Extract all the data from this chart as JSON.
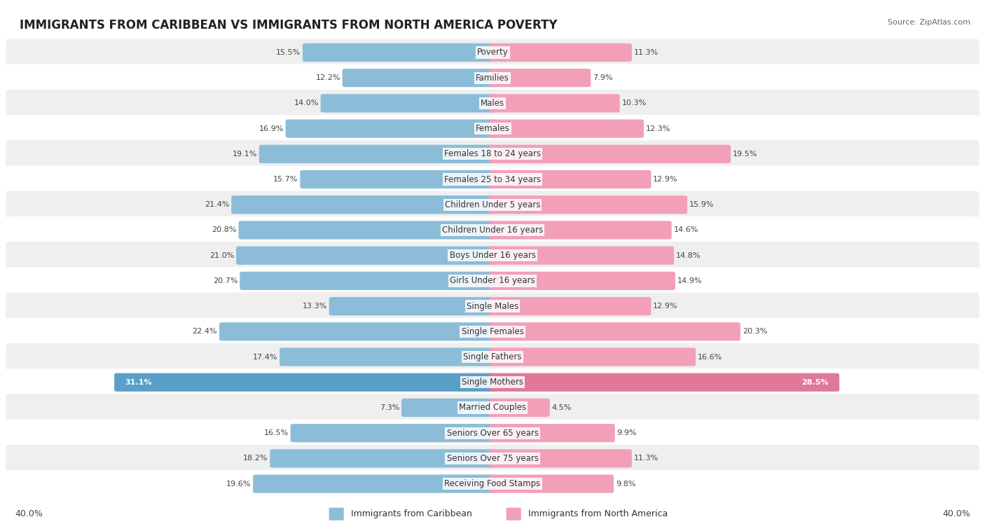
{
  "title": "IMMIGRANTS FROM CARIBBEAN VS IMMIGRANTS FROM NORTH AMERICA POVERTY",
  "source": "Source: ZipAtlas.com",
  "categories": [
    "Poverty",
    "Families",
    "Males",
    "Females",
    "Females 18 to 24 years",
    "Females 25 to 34 years",
    "Children Under 5 years",
    "Children Under 16 years",
    "Boys Under 16 years",
    "Girls Under 16 years",
    "Single Males",
    "Single Females",
    "Single Fathers",
    "Single Mothers",
    "Married Couples",
    "Seniors Over 65 years",
    "Seniors Over 75 years",
    "Receiving Food Stamps"
  ],
  "left_values": [
    15.5,
    12.2,
    14.0,
    16.9,
    19.1,
    15.7,
    21.4,
    20.8,
    21.0,
    20.7,
    13.3,
    22.4,
    17.4,
    31.1,
    7.3,
    16.5,
    18.2,
    19.6
  ],
  "right_values": [
    11.3,
    7.9,
    10.3,
    12.3,
    19.5,
    12.9,
    15.9,
    14.6,
    14.8,
    14.9,
    12.9,
    20.3,
    16.6,
    28.5,
    4.5,
    9.9,
    11.3,
    9.8
  ],
  "left_color": "#8cbdd8",
  "right_color": "#f2a0b8",
  "left_highlight_color": "#5a9fc8",
  "right_highlight_color": "#e07898",
  "highlight_rows": [
    13
  ],
  "background_color": "#ffffff",
  "row_bg_even": "#efefef",
  "row_bg_odd": "#ffffff",
  "axis_max": 40.0,
  "legend_left": "Immigrants from Caribbean",
  "legend_right": "Immigrants from North America",
  "title_fontsize": 12,
  "source_fontsize": 8,
  "label_fontsize": 8.5,
  "value_fontsize": 8,
  "legend_fontsize": 9,
  "axis_label_fontsize": 9
}
